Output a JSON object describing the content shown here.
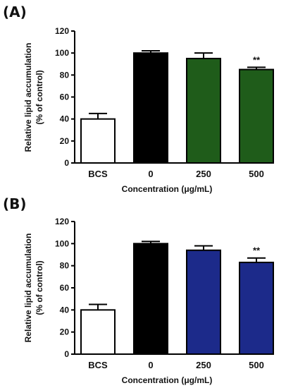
{
  "chart_data": [
    {
      "type": "bar",
      "panel_label": "(A)",
      "categories": [
        "BCS",
        "0",
        "250",
        "500"
      ],
      "values": [
        40,
        100,
        95,
        85
      ],
      "errors": [
        5,
        2,
        5,
        2
      ],
      "bar_colors": [
        "#ffffff",
        "#000000",
        "#1f5c1a",
        "#1f5c1a"
      ],
      "annotations": [
        "",
        "",
        "",
        "**"
      ],
      "xlabel": "Concentration (μg/mL)",
      "ylabel_line1": "Relative lipid accumulation",
      "ylabel_line2": "(% of control)",
      "ylim": [
        0,
        120
      ],
      "yticks": [
        0,
        20,
        40,
        60,
        80,
        100,
        120
      ],
      "grid": false
    },
    {
      "type": "bar",
      "panel_label": "(B)",
      "categories": [
        "BCS",
        "0",
        "250",
        "500"
      ],
      "values": [
        40,
        100,
        94,
        83
      ],
      "errors": [
        5,
        2,
        4,
        4
      ],
      "bar_colors": [
        "#ffffff",
        "#000000",
        "#1c2a8a",
        "#1c2a8a"
      ],
      "annotations": [
        "",
        "",
        "",
        "**"
      ],
      "xlabel": "Concentration (μg/mL)",
      "ylabel_line1": "Relative lipid accumulation",
      "ylabel_line2": "(% of control)",
      "ylim": [
        0,
        120
      ],
      "yticks": [
        0,
        20,
        40,
        60,
        80,
        100,
        120
      ],
      "grid": false
    }
  ]
}
